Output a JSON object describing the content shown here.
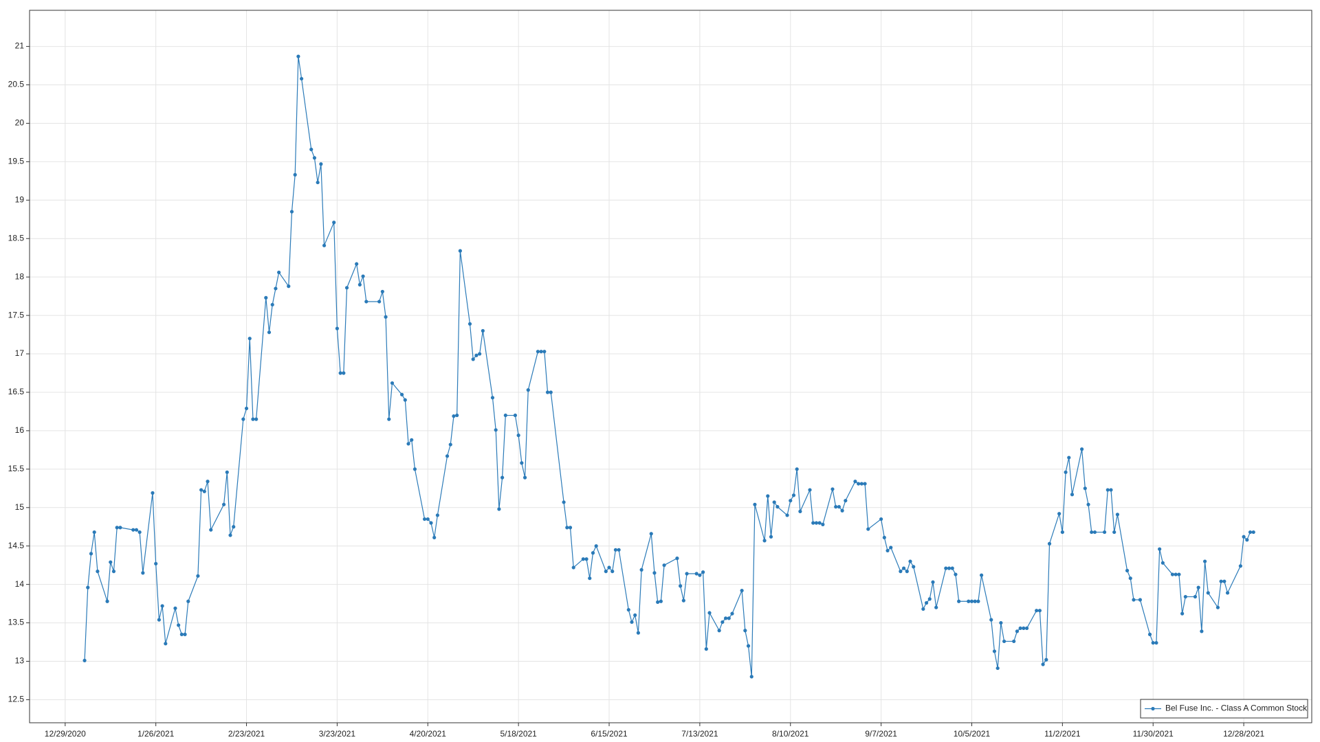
{
  "chart_data": {
    "type": "line",
    "x": [
      "1/4/2021",
      "1/5/2021",
      "1/6/2021",
      "1/7/2021",
      "1/8/2021",
      "1/11/2021",
      "1/12/2021",
      "1/13/2021",
      "1/14/2021",
      "1/15/2021",
      "1/19/2021",
      "1/20/2021",
      "1/21/2021",
      "1/22/2021",
      "1/25/2021",
      "1/26/2021",
      "1/27/2021",
      "1/28/2021",
      "1/29/2021",
      "2/1/2021",
      "2/2/2021",
      "2/3/2021",
      "2/4/2021",
      "2/5/2021",
      "2/8/2021",
      "2/9/2021",
      "2/10/2021",
      "2/11/2021",
      "2/12/2021",
      "2/16/2021",
      "2/17/2021",
      "2/18/2021",
      "2/19/2021",
      "2/22/2021",
      "2/23/2021",
      "2/24/2021",
      "2/25/2021",
      "2/26/2021",
      "3/1/2021",
      "3/2/2021",
      "3/3/2021",
      "3/4/2021",
      "3/5/2021",
      "3/8/2021",
      "3/9/2021",
      "3/10/2021",
      "3/11/2021",
      "3/12/2021",
      "3/15/2021",
      "3/16/2021",
      "3/17/2021",
      "3/18/2021",
      "3/19/2021",
      "3/22/2021",
      "3/23/2021",
      "3/24/2021",
      "3/25/2021",
      "3/26/2021",
      "3/29/2021",
      "3/30/2021",
      "3/31/2021",
      "4/1/2021",
      "4/5/2021",
      "4/6/2021",
      "4/7/2021",
      "4/8/2021",
      "4/9/2021",
      "4/12/2021",
      "4/13/2021",
      "4/14/2021",
      "4/15/2021",
      "4/16/2021",
      "4/19/2021",
      "4/20/2021",
      "4/21/2021",
      "4/22/2021",
      "4/23/2021",
      "4/26/2021",
      "4/27/2021",
      "4/28/2021",
      "4/29/2021",
      "4/30/2021",
      "5/3/2021",
      "5/4/2021",
      "5/5/2021",
      "5/6/2021",
      "5/7/2021",
      "5/10/2021",
      "5/11/2021",
      "5/12/2021",
      "5/13/2021",
      "5/14/2021",
      "5/17/2021",
      "5/18/2021",
      "5/19/2021",
      "5/20/2021",
      "5/21/2021",
      "5/24/2021",
      "5/25/2021",
      "5/26/2021",
      "5/27/2021",
      "5/28/2021",
      "6/1/2021",
      "6/2/2021",
      "6/3/2021",
      "6/4/2021",
      "6/7/2021",
      "6/8/2021",
      "6/9/2021",
      "6/10/2021",
      "6/11/2021",
      "6/14/2021",
      "6/15/2021",
      "6/16/2021",
      "6/17/2021",
      "6/18/2021",
      "6/21/2021",
      "6/22/2021",
      "6/23/2021",
      "6/24/2021",
      "6/25/2021",
      "6/28/2021",
      "6/29/2021",
      "6/30/2021",
      "7/1/2021",
      "7/2/2021",
      "7/6/2021",
      "7/7/2021",
      "7/8/2021",
      "7/9/2021",
      "7/12/2021",
      "7/13/2021",
      "7/14/2021",
      "7/15/2021",
      "7/16/2021",
      "7/19/2021",
      "7/20/2021",
      "7/21/2021",
      "7/22/2021",
      "7/23/2021",
      "7/26/2021",
      "7/27/2021",
      "7/28/2021",
      "7/29/2021",
      "7/30/2021",
      "8/2/2021",
      "8/3/2021",
      "8/4/2021",
      "8/5/2021",
      "8/6/2021",
      "8/9/2021",
      "8/10/2021",
      "8/11/2021",
      "8/12/2021",
      "8/13/2021",
      "8/16/2021",
      "8/17/2021",
      "8/18/2021",
      "8/19/2021",
      "8/20/2021",
      "8/23/2021",
      "8/24/2021",
      "8/25/2021",
      "8/26/2021",
      "8/27/2021",
      "8/30/2021",
      "8/31/2021",
      "9/1/2021",
      "9/2/2021",
      "9/3/2021",
      "9/7/2021",
      "9/8/2021",
      "9/9/2021",
      "9/10/2021",
      "9/13/2021",
      "9/14/2021",
      "9/15/2021",
      "9/16/2021",
      "9/17/2021",
      "9/20/2021",
      "9/21/2021",
      "9/22/2021",
      "9/23/2021",
      "9/24/2021",
      "9/27/2021",
      "9/28/2021",
      "9/29/2021",
      "9/30/2021",
      "10/1/2021",
      "10/4/2021",
      "10/5/2021",
      "10/6/2021",
      "10/7/2021",
      "10/8/2021",
      "10/11/2021",
      "10/12/2021",
      "10/13/2021",
      "10/14/2021",
      "10/15/2021",
      "10/18/2021",
      "10/19/2021",
      "10/20/2021",
      "10/21/2021",
      "10/22/2021",
      "10/25/2021",
      "10/26/2021",
      "10/27/2021",
      "10/28/2021",
      "10/29/2021",
      "11/1/2021",
      "11/2/2021",
      "11/3/2021",
      "11/4/2021",
      "11/5/2021",
      "11/8/2021",
      "11/9/2021",
      "11/10/2021",
      "11/11/2021",
      "11/12/2021",
      "11/15/2021",
      "11/16/2021",
      "11/17/2021",
      "11/18/2021",
      "11/19/2021",
      "11/22/2021",
      "11/23/2021",
      "11/24/2021",
      "11/26/2021",
      "11/29/2021",
      "11/30/2021",
      "12/1/2021",
      "12/2/2021",
      "12/3/2021",
      "12/6/2021",
      "12/7/2021",
      "12/8/2021",
      "12/9/2021",
      "12/10/2021",
      "12/13/2021",
      "12/14/2021",
      "12/15/2021",
      "12/16/2021",
      "12/17/2021",
      "12/20/2021",
      "12/21/2021",
      "12/22/2021",
      "12/23/2021",
      "12/27/2021",
      "12/28/2021",
      "12/29/2021",
      "12/30/2021",
      "12/31/2021"
    ],
    "series": [
      {
        "name": "Bel Fuse Inc. - Class A Common Stock",
        "color": "#2a7ab8",
        "values": [
          13.01,
          13.96,
          14.4,
          14.68,
          14.17,
          13.78,
          14.29,
          14.17,
          14.74,
          14.74,
          14.71,
          14.71,
          14.68,
          14.15,
          15.19,
          14.27,
          13.54,
          13.72,
          13.23,
          13.69,
          13.47,
          13.35,
          13.35,
          13.78,
          14.11,
          15.23,
          15.21,
          15.34,
          14.71,
          15.04,
          15.46,
          14.64,
          14.75,
          16.15,
          16.29,
          17.2,
          16.15,
          16.15,
          17.73,
          17.28,
          17.64,
          17.85,
          18.06,
          17.88,
          18.85,
          19.33,
          20.87,
          20.58,
          19.66,
          19.55,
          19.23,
          19.47,
          18.41,
          18.71,
          17.33,
          16.75,
          16.75,
          17.86,
          18.17,
          17.9,
          18.01,
          17.68,
          17.68,
          17.81,
          17.48,
          16.15,
          16.62,
          16.47,
          16.4,
          15.83,
          15.88,
          15.5,
          14.85,
          14.85,
          14.8,
          14.61,
          14.9,
          15.67,
          15.82,
          16.19,
          16.2,
          18.34,
          17.39,
          16.93,
          16.98,
          17.0,
          17.3,
          16.43,
          16.01,
          14.98,
          15.39,
          16.2,
          16.2,
          15.94,
          15.58,
          15.39,
          16.53,
          17.03,
          17.03,
          17.03,
          16.5,
          16.5,
          15.07,
          14.74,
          14.74,
          14.22,
          14.33,
          14.33,
          14.08,
          14.41,
          14.5,
          14.17,
          14.22,
          14.17,
          14.45,
          14.45,
          13.67,
          13.51,
          13.6,
          13.37,
          14.19,
          14.66,
          14.15,
          13.77,
          13.78,
          14.25,
          14.34,
          13.98,
          13.79,
          14.14,
          14.14,
          14.12,
          14.16,
          13.16,
          13.63,
          13.4,
          13.51,
          13.56,
          13.56,
          13.62,
          13.92,
          13.4,
          13.2,
          12.8,
          15.04,
          14.57,
          15.15,
          14.62,
          15.07,
          15.01,
          14.9,
          15.09,
          15.16,
          15.5,
          14.95,
          15.23,
          14.8,
          14.8,
          14.8,
          14.78,
          15.24,
          15.01,
          15.01,
          14.96,
          15.09,
          15.34,
          15.31,
          15.31,
          15.31,
          14.72,
          14.85,
          14.61,
          14.44,
          14.48,
          14.17,
          14.21,
          14.17,
          14.3,
          14.23,
          13.68,
          13.76,
          13.81,
          14.03,
          13.7,
          14.21,
          14.21,
          14.21,
          14.13,
          13.78,
          13.78,
          13.78,
          13.78,
          13.78,
          14.12,
          13.54,
          13.13,
          12.91,
          13.5,
          13.26,
          13.26,
          13.39,
          13.43,
          13.43,
          13.43,
          13.66,
          13.66,
          12.96,
          13.02,
          14.53,
          14.92,
          14.68,
          15.46,
          15.65,
          15.17,
          15.76,
          15.25,
          15.04,
          14.68,
          14.68,
          14.68,
          15.23,
          15.23,
          14.68,
          14.91,
          14.18,
          14.08,
          13.8,
          13.8,
          13.35,
          13.24,
          13.24,
          14.46,
          14.28,
          14.13,
          14.13,
          14.13,
          13.62,
          13.84,
          13.84,
          13.96,
          13.39,
          14.3,
          13.89,
          13.7,
          14.04,
          14.04,
          13.89,
          14.24,
          14.62,
          14.58,
          14.68,
          14.68
        ]
      }
    ],
    "xlim": [
      "12/18/2020",
      "1/18/2022"
    ],
    "xticks": [
      "12/29/2020",
      "1/26/2021",
      "2/23/2021",
      "3/23/2021",
      "4/20/2021",
      "5/18/2021",
      "6/15/2021",
      "7/13/2021",
      "8/10/2021",
      "9/7/2021",
      "10/5/2021",
      "11/2/2021",
      "11/30/2021",
      "12/28/2021"
    ],
    "ylim": [
      12.2,
      21.47
    ],
    "yticks": [
      12.5,
      13,
      13.5,
      14,
      14.5,
      15,
      15.5,
      16,
      16.5,
      17,
      17.5,
      18,
      18.5,
      19,
      19.5,
      20,
      20.5,
      21
    ],
    "grid": true,
    "legend": "lower right"
  }
}
